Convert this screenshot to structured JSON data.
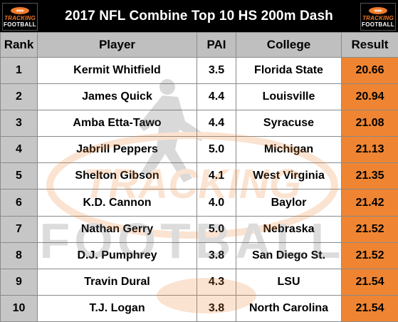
{
  "title": "2017 NFL Combine Top 10 HS 200m Dash",
  "logo": {
    "line1": "TRACKING",
    "line2": "FOOTBALL"
  },
  "watermark": {
    "line1": "TRACKING",
    "line2": "FOOTBALL"
  },
  "colors": {
    "result_bg": "#ef8532",
    "rank_bg": "#c6c6c6",
    "header_bg": "#bfbfbf",
    "title_bg": "#000000"
  },
  "columns": [
    "Rank",
    "Player",
    "PAI",
    "College",
    "Result"
  ],
  "rows": [
    {
      "rank": "1",
      "player": "Kermit Whitfield",
      "pai": "3.5",
      "college": "Florida State",
      "result": "20.66"
    },
    {
      "rank": "2",
      "player": "James Quick",
      "pai": "4.4",
      "college": "Louisville",
      "result": "20.94"
    },
    {
      "rank": "3",
      "player": "Amba Etta-Tawo",
      "pai": "4.4",
      "college": "Syracuse",
      "result": "21.08"
    },
    {
      "rank": "4",
      "player": "Jabrill Peppers",
      "pai": "5.0",
      "college": "Michigan",
      "result": "21.13"
    },
    {
      "rank": "5",
      "player": "Shelton Gibson",
      "pai": "4.1",
      "college": "West Virginia",
      "result": "21.35"
    },
    {
      "rank": "6",
      "player": "K.D. Cannon",
      "pai": "4.0",
      "college": "Baylor",
      "result": "21.42"
    },
    {
      "rank": "7",
      "player": "Nathan Gerry",
      "pai": "5.0",
      "college": "Nebraska",
      "result": "21.52"
    },
    {
      "rank": "8",
      "player": "D.J. Pumphrey",
      "pai": "3.8",
      "college": "San Diego St.",
      "result": "21.52"
    },
    {
      "rank": "9",
      "player": "Travin Dural",
      "pai": "4.3",
      "college": "LSU",
      "result": "21.54"
    },
    {
      "rank": "10",
      "player": "T.J. Logan",
      "pai": "3.8",
      "college": "North Carolina",
      "result": "21.54"
    }
  ]
}
